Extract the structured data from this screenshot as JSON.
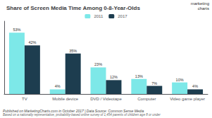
{
  "chart_data": {
    "type": "bar",
    "title": "Share of Screen Media Time Among 0-8-Year-Olds",
    "categories": [
      "TV",
      "Mobile device",
      "DVD / Videotape",
      "Computer",
      "Video game player"
    ],
    "series": [
      {
        "name": "2011",
        "color": "#7de8e8",
        "values": [
          53,
          4,
          23,
          13,
          10
        ],
        "value_labels": [
          "53%",
          "4%",
          "23%",
          "13%",
          "10%"
        ]
      },
      {
        "name": "2017",
        "color": "#1d3d4f",
        "values": [
          42,
          35,
          12,
          7,
          4
        ],
        "value_labels": [
          "42%",
          "35%",
          "12%",
          "7%",
          "4%"
        ]
      }
    ],
    "ylim": [
      0,
      63
    ],
    "grid": false,
    "legend": "top",
    "data_labels": true,
    "tick_labels": "x",
    "annotations": [
      "Published on MarketingCharts.com in October 2017 | Data Source: Common Sense Media",
      "Based on a nationally representative, probability-based online survey of 1,454 parents of children age 8 or under",
      "marketing",
      "charts"
    ]
  }
}
